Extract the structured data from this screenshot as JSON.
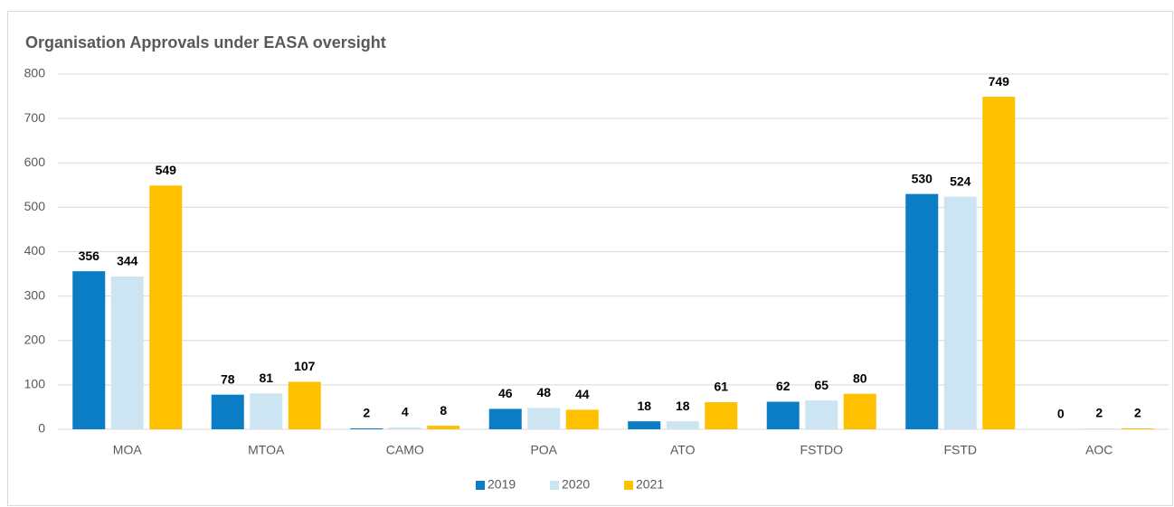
{
  "chart_data": {
    "type": "bar",
    "title": "Organisation Approvals under EASA oversight",
    "categories": [
      "MOA",
      "MTOA",
      "CAMO",
      "POA",
      "ATO",
      "FSTDO",
      "FSTD",
      "AOC"
    ],
    "series": [
      {
        "name": "2019",
        "color": "#0b7dc4",
        "values": [
          356,
          78,
          2,
          46,
          18,
          62,
          530,
          0
        ]
      },
      {
        "name": "2020",
        "color": "#cde5f3",
        "values": [
          344,
          81,
          4,
          48,
          18,
          65,
          524,
          2
        ]
      },
      {
        "name": "2021",
        "color": "#ffc000",
        "values": [
          549,
          107,
          8,
          44,
          61,
          80,
          749,
          2
        ]
      }
    ],
    "ylim": [
      0,
      800
    ],
    "yticks": [
      0,
      100,
      200,
      300,
      400,
      500,
      600,
      700,
      800
    ],
    "grid": true,
    "legend": "bottom"
  }
}
